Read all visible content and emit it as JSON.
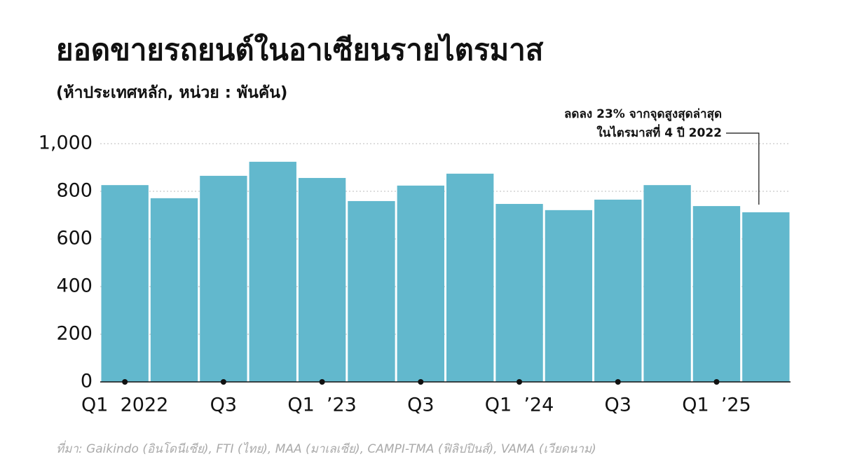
{
  "chart_data": {
    "type": "bar",
    "title": "ยอดขายรถยนต์ในอาเซียนรายไตรมาส",
    "subtitle": "(ห้าประเทศหลัก, หน่วย : พันคัน)",
    "annotation": [
      "ลดลง 23% จากจุดสูงสุดล่าสุด",
      "ในไตรมาสที่ 4 ปี 2022"
    ],
    "source": "ที่มา: Gaikindo (อินโดนีเซีย), FTI (ไทย), MAA (มาเลเซีย), CAMPI-TMA (ฟิลิปปินส์), VAMA (เวียดนาม)",
    "categories": [
      "Q1  2022",
      null,
      "Q3",
      null,
      "Q1  ’23",
      null,
      "Q3",
      null,
      "Q1  ’24",
      null,
      "Q3",
      null,
      "Q1  ’25",
      null
    ],
    "values": [
      826,
      771,
      865,
      924,
      856,
      759,
      824,
      874,
      747,
      721,
      765,
      826,
      738,
      712
    ],
    "color": "#62b8cd",
    "ylim": [
      0,
      1000
    ],
    "yticks": [
      0,
      200,
      400,
      600,
      800,
      {
        "value": 1000,
        "label": "1,000"
      }
    ],
    "grid": true
  }
}
